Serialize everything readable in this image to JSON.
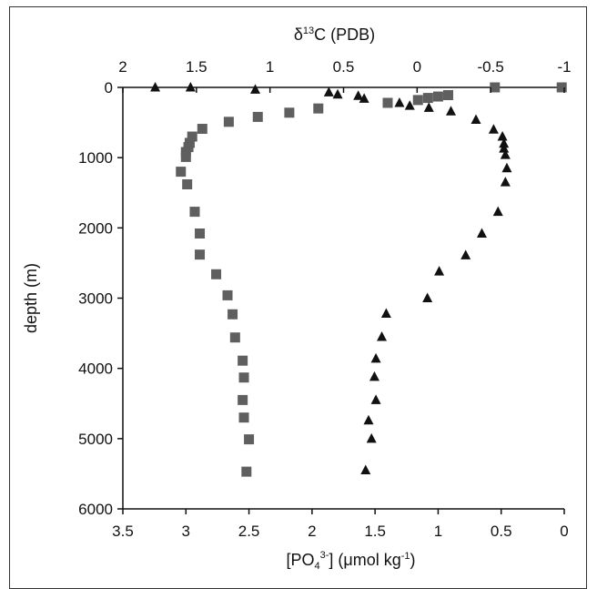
{
  "chart_data": {
    "type": "scatter",
    "title": "",
    "ylabel": "depth (m)",
    "xlabel_bottom_parts": [
      "[PO",
      "4",
      "3-",
      "] (μmol kg",
      "-1",
      ")"
    ],
    "xlabel_top_parts": [
      "δ",
      "13",
      "C (PDB)"
    ],
    "y_axis": {
      "min": 0,
      "max": 6000,
      "ticks": [
        0,
        1000,
        2000,
        3000,
        4000,
        5000,
        6000
      ],
      "tick_labels": [
        "0",
        "1000",
        "2000",
        "3000",
        "4000",
        "5000",
        "6000"
      ],
      "reversed": true
    },
    "x_bottom": {
      "min": 0,
      "max": 3.5,
      "ticks": [
        3.5,
        3,
        2.5,
        2,
        1.5,
        1,
        0.5,
        0
      ],
      "tick_labels": [
        "3.5",
        "3",
        "2.5",
        "2",
        "1.5",
        "1",
        "0.5",
        "0"
      ],
      "reversed": true
    },
    "x_top": {
      "min": -1,
      "max": 2,
      "ticks": [
        2,
        1.5,
        1,
        0.5,
        0,
        -0.5,
        -1
      ],
      "tick_labels": [
        "2",
        "1.5",
        "1",
        "0.5",
        "0",
        "-0.5",
        "-1"
      ],
      "reversed": true
    },
    "grid": false,
    "legend": "none",
    "colors": {
      "squares": "#5f5f5f",
      "triangles": "#111111",
      "axis": "#111111"
    },
    "series": [
      {
        "marker": "square",
        "axis": "x_bottom",
        "points": [
          [
            0.02,
            0
          ],
          [
            0.55,
            0
          ],
          [
            0.92,
            110
          ],
          [
            1.0,
            130
          ],
          [
            1.08,
            150
          ],
          [
            1.16,
            180
          ],
          [
            1.4,
            220
          ],
          [
            1.95,
            300
          ],
          [
            2.18,
            360
          ],
          [
            2.43,
            420
          ],
          [
            2.66,
            490
          ],
          [
            2.87,
            590
          ],
          [
            2.95,
            700
          ],
          [
            2.97,
            790
          ],
          [
            2.98,
            850
          ],
          [
            3.0,
            920
          ],
          [
            3.0,
            990
          ],
          [
            3.04,
            1200
          ],
          [
            2.99,
            1380
          ],
          [
            2.93,
            1770
          ],
          [
            2.89,
            2080
          ],
          [
            2.89,
            2380
          ],
          [
            2.76,
            2660
          ],
          [
            2.67,
            2960
          ],
          [
            2.63,
            3230
          ],
          [
            2.61,
            3560
          ],
          [
            2.55,
            3890
          ],
          [
            2.54,
            4130
          ],
          [
            2.55,
            4450
          ],
          [
            2.54,
            4700
          ],
          [
            2.5,
            5010
          ],
          [
            2.52,
            5470
          ]
        ]
      },
      {
        "marker": "triangle",
        "axis": "x_top",
        "points": [
          [
            1.78,
            0
          ],
          [
            1.54,
            0
          ],
          [
            1.1,
            30
          ],
          [
            0.6,
            70
          ],
          [
            0.54,
            100
          ],
          [
            0.4,
            120
          ],
          [
            0.36,
            160
          ],
          [
            0.12,
            220
          ],
          [
            0.05,
            260
          ],
          [
            -0.08,
            290
          ],
          [
            -0.23,
            340
          ],
          [
            -0.4,
            460
          ],
          [
            -0.52,
            600
          ],
          [
            -0.58,
            700
          ],
          [
            -0.59,
            800
          ],
          [
            -0.59,
            870
          ],
          [
            -0.6,
            960
          ],
          [
            -0.61,
            1150
          ],
          [
            -0.6,
            1350
          ],
          [
            -0.55,
            1770
          ],
          [
            -0.44,
            2080
          ],
          [
            -0.33,
            2390
          ],
          [
            -0.15,
            2620
          ],
          [
            -0.07,
            3000
          ],
          [
            0.21,
            3220
          ],
          [
            0.24,
            3550
          ],
          [
            0.28,
            3860
          ],
          [
            0.29,
            4120
          ],
          [
            0.28,
            4450
          ],
          [
            0.33,
            4740
          ],
          [
            0.31,
            5000
          ],
          [
            0.35,
            5450
          ]
        ]
      }
    ]
  }
}
